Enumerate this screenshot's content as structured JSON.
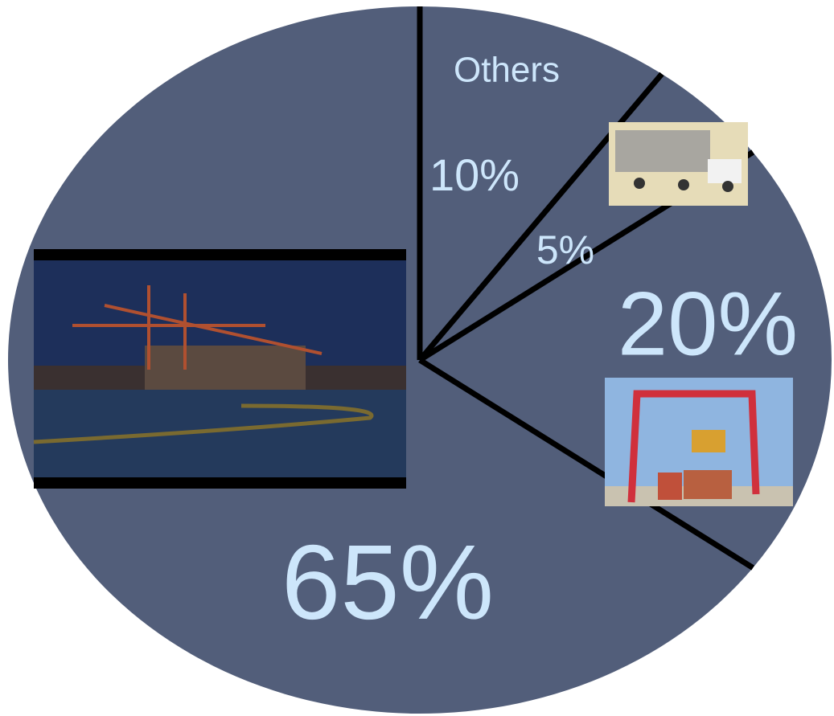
{
  "chart_data": {
    "type": "pie",
    "categories": [
      "Others",
      null,
      null,
      null
    ],
    "values": [
      10,
      5,
      20,
      65
    ],
    "value_labels": [
      "10%",
      "5%",
      "20%",
      "65%"
    ],
    "color": "#525e7a"
  }
}
